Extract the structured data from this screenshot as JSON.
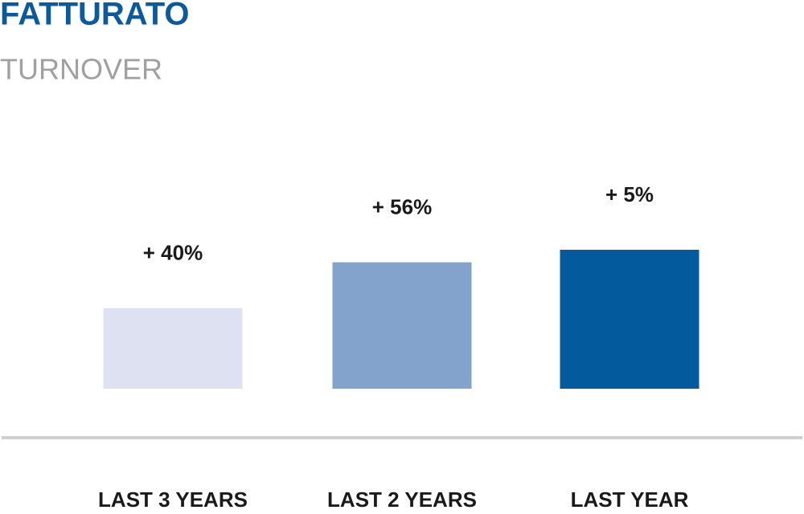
{
  "chart_data": {
    "type": "bar",
    "title": "FATTURATO",
    "subtitle": "TURNOVER",
    "categories": [
      "LAST 3 YEARS",
      "LAST 2 YEARS",
      "LAST YEAR"
    ],
    "values": [
      58,
      91,
      100
    ],
    "annotations": [
      "+ 40%",
      "+ 56%",
      "+ 5%"
    ],
    "colors": [
      "#dde1f1",
      "#83a2cc",
      "#035a9d"
    ],
    "ylim": [
      0,
      100
    ]
  }
}
